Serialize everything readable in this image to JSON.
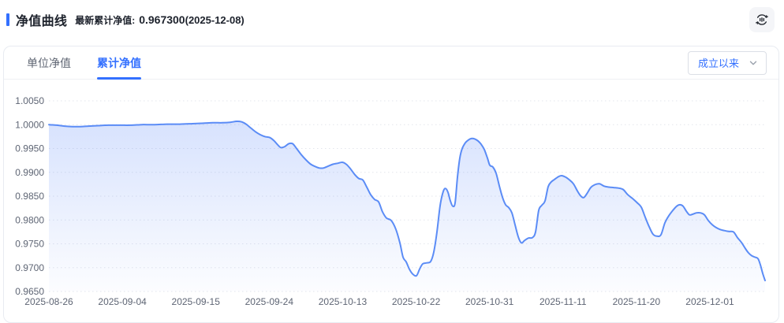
{
  "header": {
    "title": "净值曲线",
    "latest_label": "最新累计净值:",
    "latest_value": "0.967300",
    "latest_date": "(2025-12-08)",
    "toolbar_icon": "cycle-bars-icon"
  },
  "tabs": [
    {
      "label": "单位净值",
      "active": false
    },
    {
      "label": "累计净值",
      "active": true
    }
  ],
  "range_select": {
    "value": "成立以来",
    "icon": "chevron-down-icon"
  },
  "colors": {
    "accent": "#3370ff",
    "line": "#5b8cf6",
    "area_top": "rgba(97,140,248,0.28)",
    "area_bottom": "rgba(97,140,248,0.02)",
    "grid": "#e3e6ec",
    "tick_text": "#5e6574",
    "title_text": "#1d222c",
    "inactive_tab": "#5f6673"
  },
  "chart_data": {
    "type": "area",
    "series_name": "累计净值",
    "ylim": [
      0.965,
      1.005
    ],
    "grid": "dashed-horizontal",
    "y_tick_labels": [
      "1.0050",
      "1.0000",
      "0.9950",
      "0.9900",
      "0.9850",
      "0.9800",
      "0.9750",
      "0.9700",
      "0.9650"
    ],
    "x_tick_labels": [
      "2025-08-26",
      "2025-09-04",
      "2025-09-15",
      "2025-09-24",
      "2025-10-13",
      "2025-10-22",
      "2025-10-31",
      "2025-11-11",
      "2025-11-20",
      "2025-12-01"
    ],
    "latest_point": {
      "date": "2025-12-08",
      "value": 0.9673
    },
    "x_unit": "px",
    "points": [
      [
        62,
        1.0
      ],
      [
        72,
        0.9999
      ],
      [
        82,
        0.9997
      ],
      [
        92,
        0.9996
      ],
      [
        102,
        0.9996
      ],
      [
        112,
        0.9997
      ],
      [
        124,
        0.9998
      ],
      [
        138,
        0.9999
      ],
      [
        152,
        0.9999
      ],
      [
        166,
        0.9999
      ],
      [
        180,
        1.0
      ],
      [
        196,
        1.0
      ],
      [
        212,
        1.0001
      ],
      [
        228,
        1.0001
      ],
      [
        244,
        1.0002
      ],
      [
        258,
        1.0003
      ],
      [
        270,
        1.0004
      ],
      [
        282,
        1.0004
      ],
      [
        292,
        1.0005
      ],
      [
        300,
        1.0007
      ],
      [
        306,
        1.0006
      ],
      [
        312,
        1.0001
      ],
      [
        318,
        0.9993
      ],
      [
        324,
        0.9985
      ],
      [
        330,
        0.9979
      ],
      [
        336,
        0.9975
      ],
      [
        342,
        0.9973
      ],
      [
        347,
        0.9967
      ],
      [
        352,
        0.9958
      ],
      [
        356,
        0.9952
      ],
      [
        361,
        0.9954
      ],
      [
        366,
        0.996
      ],
      [
        371,
        0.996
      ],
      [
        376,
        0.995
      ],
      [
        382,
        0.9937
      ],
      [
        388,
        0.9926
      ],
      [
        394,
        0.9917
      ],
      [
        400,
        0.9912
      ],
      [
        405,
        0.9909
      ],
      [
        410,
        0.9909
      ],
      [
        416,
        0.9913
      ],
      [
        422,
        0.9917
      ],
      [
        428,
        0.9919
      ],
      [
        434,
        0.9921
      ],
      [
        439,
        0.9917
      ],
      [
        444,
        0.9908
      ],
      [
        450,
        0.9895
      ],
      [
        455,
        0.9887
      ],
      [
        460,
        0.9884
      ],
      [
        465,
        0.9869
      ],
      [
        470,
        0.9853
      ],
      [
        475,
        0.9843
      ],
      [
        480,
        0.9838
      ],
      [
        485,
        0.9817
      ],
      [
        490,
        0.9804
      ],
      [
        496,
        0.9799
      ],
      [
        502,
        0.978
      ],
      [
        507,
        0.9752
      ],
      [
        511,
        0.9722
      ],
      [
        515,
        0.9712
      ],
      [
        519,
        0.9697
      ],
      [
        523,
        0.9687
      ],
      [
        528,
        0.9683
      ],
      [
        532,
        0.9697
      ],
      [
        536,
        0.9708
      ],
      [
        541,
        0.971
      ],
      [
        546,
        0.9713
      ],
      [
        550,
        0.9733
      ],
      [
        554,
        0.9775
      ],
      [
        558,
        0.983
      ],
      [
        562,
        0.986
      ],
      [
        565,
        0.9866
      ],
      [
        568,
        0.9858
      ],
      [
        571,
        0.984
      ],
      [
        574,
        0.9829
      ],
      [
        577,
        0.9836
      ],
      [
        580,
        0.989
      ],
      [
        583,
        0.993
      ],
      [
        586,
        0.995
      ],
      [
        590,
        0.9962
      ],
      [
        594,
        0.9968
      ],
      [
        598,
        0.9971
      ],
      [
        602,
        0.997
      ],
      [
        606,
        0.9966
      ],
      [
        610,
        0.9959
      ],
      [
        614,
        0.9948
      ],
      [
        618,
        0.993
      ],
      [
        621,
        0.9915
      ],
      [
        625,
        0.9911
      ],
      [
        629,
        0.9898
      ],
      [
        633,
        0.9872
      ],
      [
        637,
        0.9848
      ],
      [
        641,
        0.9832
      ],
      [
        645,
        0.9826
      ],
      [
        649,
        0.9815
      ],
      [
        653,
        0.979
      ],
      [
        657,
        0.9765
      ],
      [
        661,
        0.9752
      ],
      [
        665,
        0.9757
      ],
      [
        670,
        0.9762
      ],
      [
        675,
        0.9763
      ],
      [
        679,
        0.9775
      ],
      [
        683,
        0.982
      ],
      [
        687,
        0.9831
      ],
      [
        691,
        0.984
      ],
      [
        695,
        0.987
      ],
      [
        699,
        0.988
      ],
      [
        703,
        0.9885
      ],
      [
        708,
        0.9891
      ],
      [
        712,
        0.9893
      ],
      [
        717,
        0.989
      ],
      [
        722,
        0.9884
      ],
      [
        727,
        0.9876
      ],
      [
        732,
        0.9861
      ],
      [
        736,
        0.9851
      ],
      [
        740,
        0.9847
      ],
      [
        744,
        0.9855
      ],
      [
        749,
        0.9868
      ],
      [
        754,
        0.9874
      ],
      [
        760,
        0.9876
      ],
      [
        766,
        0.9871
      ],
      [
        772,
        0.9869
      ],
      [
        778,
        0.9868
      ],
      [
        784,
        0.9867
      ],
      [
        790,
        0.9864
      ],
      [
        796,
        0.9853
      ],
      [
        802,
        0.9845
      ],
      [
        808,
        0.9836
      ],
      [
        813,
        0.9827
      ],
      [
        818,
        0.9806
      ],
      [
        823,
        0.9786
      ],
      [
        828,
        0.977
      ],
      [
        833,
        0.9766
      ],
      [
        838,
        0.9769
      ],
      [
        843,
        0.9794
      ],
      [
        848,
        0.9809
      ],
      [
        853,
        0.982
      ],
      [
        858,
        0.9829
      ],
      [
        862,
        0.9832
      ],
      [
        866,
        0.9829
      ],
      [
        870,
        0.9819
      ],
      [
        874,
        0.9811
      ],
      [
        878,
        0.9812
      ],
      [
        883,
        0.9815
      ],
      [
        888,
        0.9815
      ],
      [
        893,
        0.9811
      ],
      [
        898,
        0.9799
      ],
      [
        903,
        0.979
      ],
      [
        908,
        0.9784
      ],
      [
        913,
        0.978
      ],
      [
        918,
        0.9778
      ],
      [
        924,
        0.9776
      ],
      [
        930,
        0.9775
      ],
      [
        935,
        0.9763
      ],
      [
        940,
        0.9753
      ],
      [
        945,
        0.974
      ],
      [
        949,
        0.9731
      ],
      [
        953,
        0.9725
      ],
      [
        957,
        0.9722
      ],
      [
        961,
        0.9719
      ],
      [
        964,
        0.9706
      ],
      [
        967,
        0.9688
      ],
      [
        970,
        0.9673
      ]
    ]
  }
}
